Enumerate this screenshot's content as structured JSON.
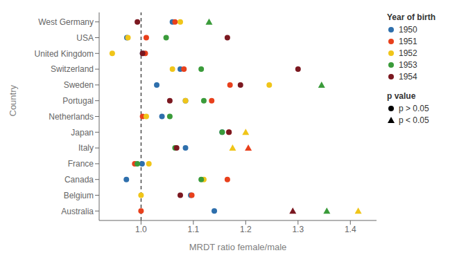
{
  "chart_data": {
    "type": "scatter",
    "xlabel": "MRDT ratio female/male",
    "ylabel": "Country",
    "categories": [
      "West Germany",
      "USA",
      "United Kingdom",
      "Switzerland",
      "Sweden",
      "Portugal",
      "Netherlands",
      "Japan",
      "Italy",
      "France",
      "Canada",
      "Belgium",
      "Australia"
    ],
    "series": [
      {
        "name": "1950",
        "color": "#2e6fac",
        "values": [
          1.06,
          0.973,
          1.003,
          1.075,
          1.03,
          1.085,
          1.04,
          1.155,
          1.085,
          1.002,
          0.972,
          1.095,
          1.14
        ],
        "markers": [
          "circle",
          "circle",
          "circle",
          "circle",
          "circle",
          "circle",
          "circle",
          "circle",
          "circle",
          "circle",
          "circle",
          "circle",
          "circle"
        ]
      },
      {
        "name": "1951",
        "color": "#e8401c",
        "values": [
          1.065,
          1.01,
          1.008,
          1.082,
          1.17,
          1.135,
          1.003,
          1.168,
          1.205,
          0.988,
          1.165,
          1.097,
          1.0
        ],
        "markers": [
          "circle",
          "circle",
          "circle",
          "circle",
          "circle",
          "circle",
          "circle",
          "circle",
          "triangle",
          "circle",
          "circle",
          "circle",
          "circle"
        ]
      },
      {
        "name": "1952",
        "color": "#f0c519",
        "values": [
          1.075,
          0.975,
          0.945,
          1.06,
          1.245,
          1.085,
          1.01,
          1.2,
          1.175,
          1.015,
          1.12,
          1.0,
          1.415
        ],
        "markers": [
          "circle",
          "circle",
          "circle",
          "circle",
          "circle",
          "circle",
          "circle",
          "triangle",
          "triangle",
          "circle",
          "circle",
          "circle",
          "triangle"
        ]
      },
      {
        "name": "1953",
        "color": "#3a9b3a",
        "values": [
          1.13,
          1.048,
          null,
          1.115,
          1.345,
          1.12,
          1.055,
          1.155,
          1.065,
          0.993,
          1.115,
          null,
          1.355
        ],
        "markers": [
          "triangle",
          "circle",
          null,
          "circle",
          "triangle",
          "circle",
          "circle",
          "circle",
          "circle",
          "circle",
          "circle",
          null,
          "triangle"
        ]
      },
      {
        "name": "1954",
        "color": "#7b1820",
        "values": [
          0.993,
          1.165,
          1.003,
          1.3,
          1.19,
          1.055,
          null,
          1.168,
          1.068,
          null,
          null,
          1.075,
          1.29
        ],
        "markers": [
          "circle",
          "circle",
          "circle",
          "circle",
          "circle",
          "circle",
          null,
          "circle",
          "circle",
          null,
          null,
          "circle",
          "triangle"
        ]
      }
    ],
    "xlim": [
      0.92,
      1.45
    ],
    "xticks": [
      {
        "value": 1.0,
        "label": "1.0"
      },
      1.1,
      1.2,
      1.3,
      1.4
    ],
    "vlines": [
      {
        "x": 1.0,
        "line_style": "dashed",
        "color": "#000000"
      }
    ],
    "grid": false,
    "legend": "right",
    "legend_title": "Year of birth",
    "marker_legend": {
      "title": "p value",
      "color": "#000000",
      "entries": [
        {
          "name": "p > 0.05",
          "marker": "circle"
        },
        {
          "name": "p < 0.05",
          "marker": "triangle"
        }
      ]
    }
  }
}
